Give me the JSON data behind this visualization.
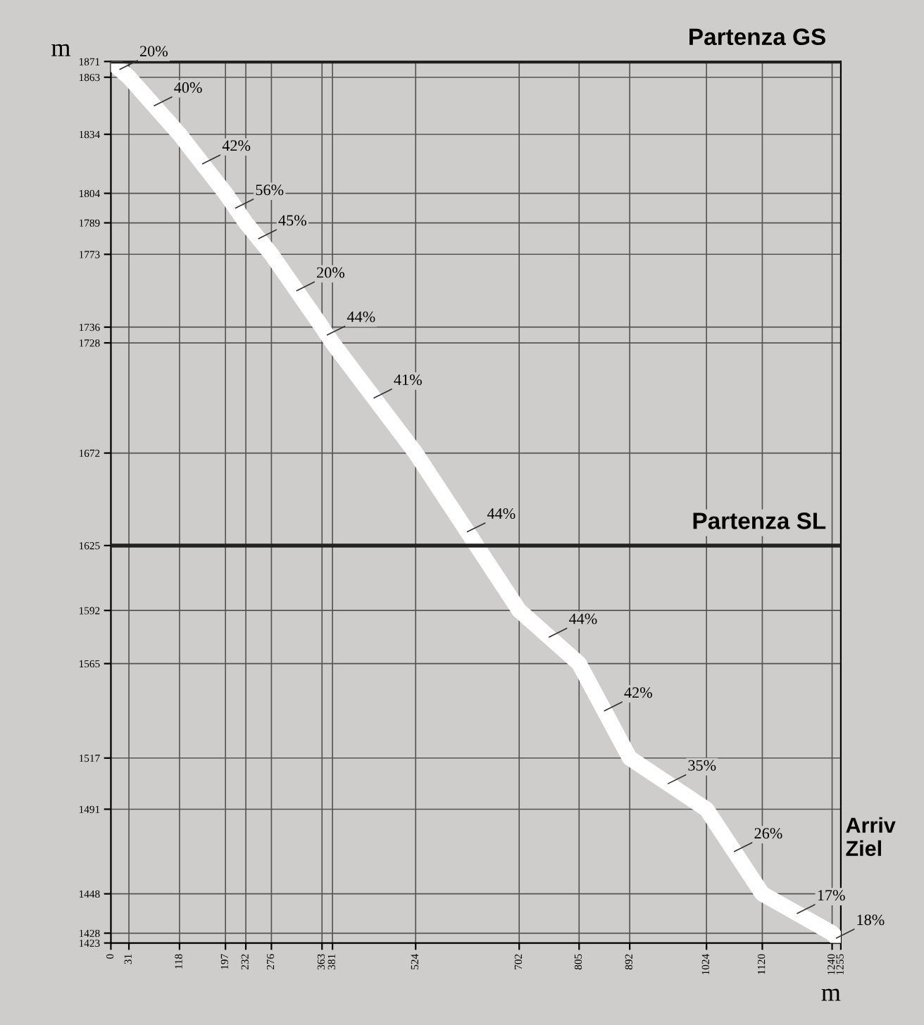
{
  "chart_data": {
    "type": "line",
    "xlabel": "m",
    "ylabel": "m",
    "x": [
      0,
      31,
      118,
      197,
      232,
      276,
      363,
      381,
      524,
      702,
      805,
      892,
      1024,
      1120,
      1240,
      1255
    ],
    "series": [
      {
        "color": "#ffffff",
        "values": [
          1871,
          1863,
          1834,
          1804,
          1789,
          1773,
          1736,
          1728,
          1672,
          1592,
          1565,
          1517,
          1491,
          1448,
          1428,
          1423
        ]
      }
    ],
    "xlim": [
      0,
      1255
    ],
    "ylim": [
      1423,
      1871
    ],
    "xticks": [
      0,
      31,
      118,
      197,
      232,
      276,
      363,
      381,
      524,
      702,
      805,
      892,
      1024,
      1120,
      1240,
      1255
    ],
    "yticks": [
      1423,
      1428,
      1448,
      1491,
      1517,
      1565,
      1592,
      1625,
      1672,
      1728,
      1736,
      1773,
      1789,
      1804,
      1834,
      1863,
      1871
    ],
    "grid": true,
    "line_style": "solid",
    "ref_lines": [
      {
        "axis": "y",
        "value": 1871,
        "label": "Partenza GS",
        "color": "#222222"
      },
      {
        "axis": "y",
        "value": 1625,
        "label": "Partenza SL",
        "color": "#222222"
      }
    ],
    "annotations": [
      {
        "text": "20%",
        "x": 15.5,
        "y": 1867
      },
      {
        "text": "40%",
        "x": 74.5,
        "y": 1848.5
      },
      {
        "text": "42%",
        "x": 157.5,
        "y": 1819
      },
      {
        "text": "56%",
        "x": 214.5,
        "y": 1796.5
      },
      {
        "text": "45%",
        "x": 254,
        "y": 1781
      },
      {
        "text": "20%",
        "x": 319.5,
        "y": 1754.5
      },
      {
        "text": "44%",
        "x": 372,
        "y": 1732
      },
      {
        "text": "41%",
        "x": 452.5,
        "y": 1700
      },
      {
        "text": "44%",
        "x": 613,
        "y": 1632
      },
      {
        "text": "44%",
        "x": 753.5,
        "y": 1578.5
      },
      {
        "text": "42%",
        "x": 848.5,
        "y": 1541
      },
      {
        "text": "35%",
        "x": 958,
        "y": 1504
      },
      {
        "text": "26%",
        "x": 1072,
        "y": 1469.5
      },
      {
        "text": "17%",
        "x": 1180,
        "y": 1438
      },
      {
        "text": "18%",
        "x": 1247.5,
        "y": 1425.5
      },
      "Arriv\nZiel"
    ]
  }
}
